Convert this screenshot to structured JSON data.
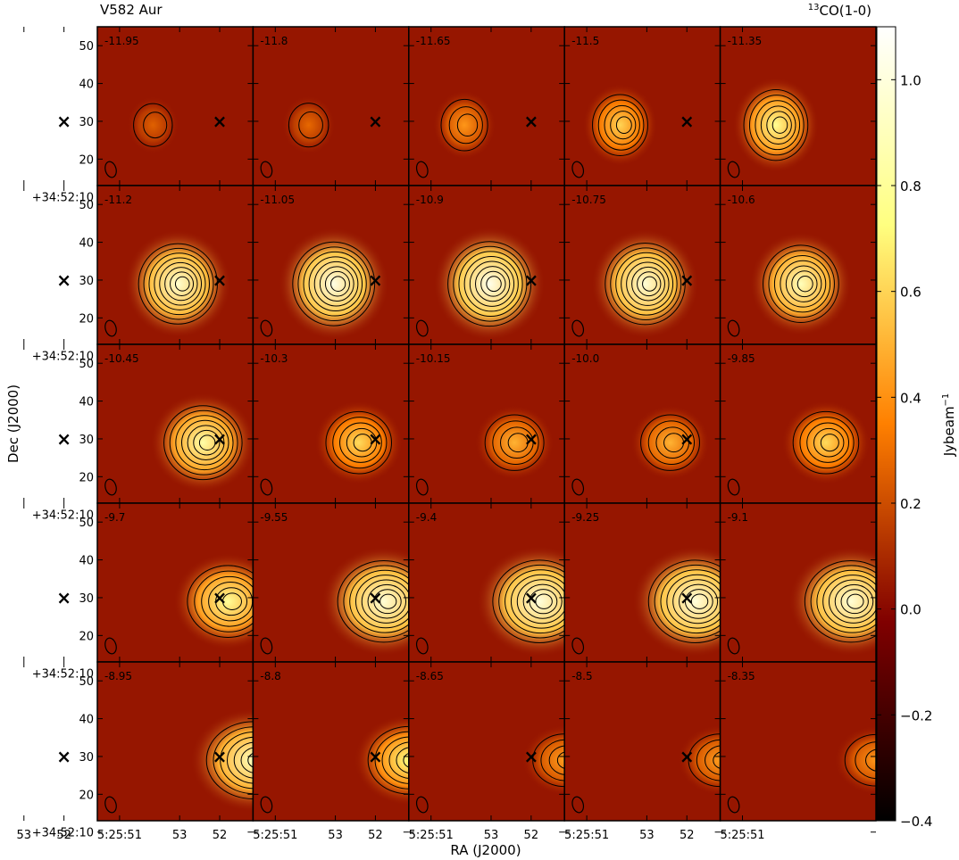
{
  "chart_data": {
    "type": "heatmap",
    "title_left": "V582 Aur",
    "title_right_sup": "13",
    "title_right": "CO(1-0)",
    "xlabel": "RA (J2000)",
    "ylabel": "Dec (J2000)",
    "x_tick_labels": [
      "53",
      "52",
      "5:25:51"
    ],
    "y_tick_labels": [
      "50",
      "40",
      "30",
      "20",
      "+34:52:10"
    ],
    "colorbar": {
      "label": "Jybeam",
      "label_sup": "−1",
      "ticks": [
        "1.0",
        "0.8",
        "0.6",
        "0.4",
        "0.2",
        "0.0",
        "−0.2",
        "−0.4"
      ],
      "tick_values": [
        1.0,
        0.8,
        0.6,
        0.4,
        0.2,
        0.0,
        -0.2,
        -0.4
      ],
      "range": [
        -0.4,
        1.1
      ],
      "colormap": "afmhot"
    },
    "rows": 5,
    "cols": 5,
    "channels": [
      "-11.95",
      "-11.8",
      "-11.65",
      "-11.5",
      "-11.35",
      "-11.2",
      "-11.05",
      "-10.9",
      "-10.75",
      "-10.6",
      "-10.45",
      "-10.3",
      "-10.15",
      "-10.0",
      "-9.85",
      "-9.7",
      "-9.55",
      "-9.4",
      "-9.25",
      "-9.1",
      "-8.95",
      "-8.8",
      "-8.65",
      "-8.5",
      "-8.35"
    ],
    "channel_peak_jy": [
      0.26,
      0.28,
      0.42,
      0.6,
      0.78,
      0.96,
      1.02,
      1.04,
      0.98,
      0.9,
      0.84,
      0.62,
      0.5,
      0.5,
      0.62,
      0.8,
      0.98,
      1.0,
      1.0,
      0.98,
      0.9,
      0.72,
      0.44,
      0.44,
      0.42
    ],
    "marker": {
      "symbol": "×",
      "ra": "5:25:52",
      "dec_offset": 30
    },
    "beam": "ellipse, lower-left"
  }
}
